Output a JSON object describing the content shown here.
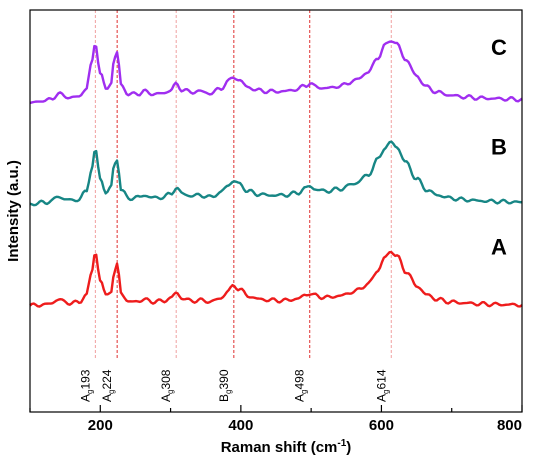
{
  "chart_data": {
    "type": "line",
    "title": "",
    "xlabel": "Raman shift (cm",
    "xlabel_sup": "-1",
    "xlabel_close": ")",
    "ylabel": "Intensity (a.u.)",
    "xlim": [
      100,
      800
    ],
    "x_ticks": [
      200,
      400,
      600,
      800
    ],
    "y_ticks_labeled": false,
    "grid": false,
    "legend": "none",
    "peaks": [
      {
        "main": "A",
        "sub": "g",
        "num": "193",
        "x": 193,
        "color": "#f0a0a0"
      },
      {
        "main": "A",
        "sub": "g",
        "num": "224",
        "x": 224,
        "color": "#e03030"
      },
      {
        "main": "A",
        "sub": "g",
        "num": "308",
        "x": 308,
        "color": "#f0a0a0"
      },
      {
        "main": "B",
        "sub": "g",
        "num": "390",
        "x": 390,
        "color": "#e03030"
      },
      {
        "main": "A",
        "sub": "g",
        "num": "498",
        "x": 498,
        "color": "#e03030"
      },
      {
        "main": "A",
        "sub": "g",
        "num": "614",
        "x": 614,
        "color": "#f0a0a0"
      }
    ],
    "series": [
      {
        "name": "A",
        "color": "#ee1c1c",
        "baseline_au": 1.0,
        "points": [
          [
            100,
            0.95
          ],
          [
            110,
            1.0
          ],
          [
            120,
            1.05
          ],
          [
            130,
            1.15
          ],
          [
            140,
            1.6
          ],
          [
            150,
            1.3
          ],
          [
            160,
            1.2
          ],
          [
            170,
            1.3
          ],
          [
            180,
            2.0
          ],
          [
            187,
            4.0
          ],
          [
            193,
            6.2
          ],
          [
            200,
            3.5
          ],
          [
            208,
            1.9
          ],
          [
            215,
            2.4
          ],
          [
            220,
            4.2
          ],
          [
            224,
            4.9
          ],
          [
            230,
            2.2
          ],
          [
            240,
            1.3
          ],
          [
            255,
            1.4
          ],
          [
            262,
            1.55
          ],
          [
            275,
            1.35
          ],
          [
            290,
            1.4
          ],
          [
            300,
            1.7
          ],
          [
            308,
            2.2
          ],
          [
            316,
            1.7
          ],
          [
            330,
            1.4
          ],
          [
            340,
            1.5
          ],
          [
            355,
            1.35
          ],
          [
            370,
            1.6
          ],
          [
            382,
            2.4
          ],
          [
            390,
            2.9
          ],
          [
            398,
            2.6
          ],
          [
            410,
            1.9
          ],
          [
            425,
            1.6
          ],
          [
            440,
            1.5
          ],
          [
            460,
            1.45
          ],
          [
            480,
            1.6
          ],
          [
            492,
            2.0
          ],
          [
            498,
            2.15
          ],
          [
            505,
            1.95
          ],
          [
            520,
            1.75
          ],
          [
            540,
            1.9
          ],
          [
            560,
            2.3
          ],
          [
            580,
            3.0
          ],
          [
            595,
            4.4
          ],
          [
            605,
            5.7
          ],
          [
            614,
            6.3
          ],
          [
            622,
            5.8
          ],
          [
            635,
            4.3
          ],
          [
            650,
            2.9
          ],
          [
            665,
            2.0
          ],
          [
            680,
            1.55
          ],
          [
            700,
            1.3
          ],
          [
            720,
            1.2
          ],
          [
            740,
            1.12
          ],
          [
            760,
            1.08
          ],
          [
            780,
            1.05
          ],
          [
            800,
            1.02
          ]
        ]
      },
      {
        "name": "B",
        "color": "#178685",
        "baseline_au": 11.0,
        "points": [
          [
            100,
            10.9
          ],
          [
            110,
            11.0
          ],
          [
            120,
            11.1
          ],
          [
            130,
            11.2
          ],
          [
            140,
            11.7
          ],
          [
            150,
            11.4
          ],
          [
            160,
            11.3
          ],
          [
            170,
            11.4
          ],
          [
            180,
            12.2
          ],
          [
            187,
            14.2
          ],
          [
            193,
            16.2
          ],
          [
            200,
            13.5
          ],
          [
            208,
            12.0
          ],
          [
            215,
            12.6
          ],
          [
            220,
            14.8
          ],
          [
            224,
            15.3
          ],
          [
            230,
            12.3
          ],
          [
            240,
            11.5
          ],
          [
            255,
            11.6
          ],
          [
            262,
            11.8
          ],
          [
            275,
            11.55
          ],
          [
            290,
            11.6
          ],
          [
            300,
            11.95
          ],
          [
            308,
            12.5
          ],
          [
            316,
            12.0
          ],
          [
            330,
            11.7
          ],
          [
            340,
            11.85
          ],
          [
            355,
            11.6
          ],
          [
            370,
            12.0
          ],
          [
            382,
            12.8
          ],
          [
            390,
            13.2
          ],
          [
            398,
            12.9
          ],
          [
            410,
            12.2
          ],
          [
            425,
            11.9
          ],
          [
            440,
            11.8
          ],
          [
            460,
            11.8
          ],
          [
            480,
            12.0
          ],
          [
            492,
            12.5
          ],
          [
            498,
            12.7
          ],
          [
            505,
            12.4
          ],
          [
            520,
            12.2
          ],
          [
            540,
            12.4
          ],
          [
            560,
            12.9
          ],
          [
            580,
            13.7
          ],
          [
            595,
            15.3
          ],
          [
            605,
            16.5
          ],
          [
            614,
            17.0
          ],
          [
            622,
            16.5
          ],
          [
            635,
            15.0
          ],
          [
            650,
            13.4
          ],
          [
            665,
            12.3
          ],
          [
            680,
            11.8
          ],
          [
            700,
            11.5
          ],
          [
            720,
            11.35
          ],
          [
            740,
            11.25
          ],
          [
            760,
            11.2
          ],
          [
            780,
            11.15
          ],
          [
            800,
            11.1
          ]
        ]
      },
      {
        "name": "C",
        "color": "#a02ef0",
        "baseline_au": 21.0,
        "points": [
          [
            100,
            20.8
          ],
          [
            110,
            21.0
          ],
          [
            120,
            21.1
          ],
          [
            130,
            21.2
          ],
          [
            140,
            21.8
          ],
          [
            150,
            21.5
          ],
          [
            160,
            21.4
          ],
          [
            170,
            21.5
          ],
          [
            180,
            22.3
          ],
          [
            187,
            24.5
          ],
          [
            193,
            26.8
          ],
          [
            200,
            23.8
          ],
          [
            208,
            22.2
          ],
          [
            215,
            22.8
          ],
          [
            220,
            25.2
          ],
          [
            224,
            25.8
          ],
          [
            230,
            22.6
          ],
          [
            240,
            21.7
          ],
          [
            255,
            21.8
          ],
          [
            262,
            22.0
          ],
          [
            275,
            21.75
          ],
          [
            290,
            21.8
          ],
          [
            300,
            22.15
          ],
          [
            308,
            22.7
          ],
          [
            316,
            22.2
          ],
          [
            330,
            21.9
          ],
          [
            340,
            22.05
          ],
          [
            355,
            21.8
          ],
          [
            370,
            22.2
          ],
          [
            382,
            23.0
          ],
          [
            390,
            23.4
          ],
          [
            398,
            23.1
          ],
          [
            410,
            22.4
          ],
          [
            425,
            22.1
          ],
          [
            440,
            22.0
          ],
          [
            460,
            22.0
          ],
          [
            480,
            22.2
          ],
          [
            492,
            22.6
          ],
          [
            498,
            22.8
          ],
          [
            505,
            22.5
          ],
          [
            520,
            22.3
          ],
          [
            540,
            22.5
          ],
          [
            560,
            23.0
          ],
          [
            580,
            23.8
          ],
          [
            595,
            25.3
          ],
          [
            605,
            26.5
          ],
          [
            614,
            27.1
          ],
          [
            622,
            26.6
          ],
          [
            635,
            25.1
          ],
          [
            650,
            23.5
          ],
          [
            665,
            22.4
          ],
          [
            680,
            21.9
          ],
          [
            700,
            21.6
          ],
          [
            720,
            21.45
          ],
          [
            740,
            21.35
          ],
          [
            760,
            21.3
          ],
          [
            780,
            21.25
          ],
          [
            800,
            21.2
          ]
        ]
      }
    ]
  }
}
